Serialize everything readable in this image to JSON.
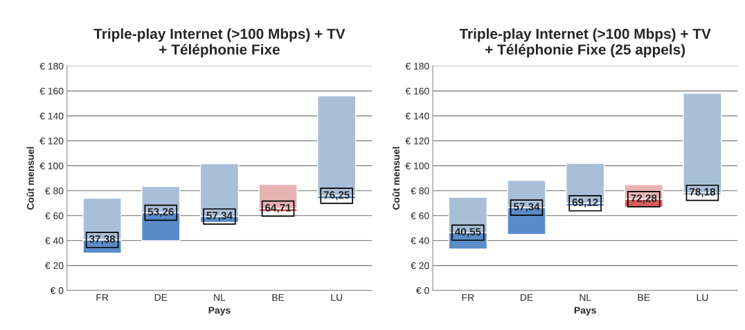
{
  "chart_data": [
    {
      "type": "bar",
      "title": "Triple-play Internet (>100 Mbps) + TV\n+ Téléphonie Fixe",
      "xlabel": "Pays",
      "ylabel": "Coût mensuel",
      "categories": [
        "FR",
        "DE",
        "NL",
        "BE",
        "LU"
      ],
      "series": [
        {
          "colors": [
            "#5b8bc9",
            "#5b8bc9",
            "#5b8bc9",
            "#d65c5c",
            "#5b8bc9"
          ],
          "base": [
            29.8,
            39.9,
            54.5,
            63.2,
            73.5
          ],
          "values": [
            10.7,
            22.4,
            4.8,
            2.4,
            2.4
          ]
        },
        {
          "colors": [
            "#a9bfd8",
            "#a9bfd8",
            "#a9bfd8",
            "#e6b3b3",
            "#a9bfd8"
          ],
          "base": [
            40.5,
            62.3,
            59.3,
            65.6,
            75.9
          ],
          "values": [
            33.4,
            21.0,
            42.3,
            19.4,
            80.1
          ]
        }
      ],
      "annotations": [
        "37,38",
        "53,26",
        "57,34",
        "64,71",
        "76,25"
      ],
      "ylim": [
        0,
        180
      ],
      "yticks": [
        {
          "value": 0,
          "label": "€ 0"
        },
        {
          "value": 20,
          "label": "€ 20"
        },
        {
          "value": 40,
          "label": "€ 40"
        },
        {
          "value": 60,
          "label": "€ 60"
        },
        {
          "value": 80,
          "label": "€ 80"
        },
        {
          "value": 100,
          "label": "€ 100"
        },
        {
          "value": 120,
          "label": "€ 120"
        },
        {
          "value": 140,
          "label": "€ 140"
        },
        {
          "value": 160,
          "label": "€ 160"
        },
        {
          "value": 180,
          "label": "€ 180"
        }
      ],
      "grid": "y"
    },
    {
      "type": "bar",
      "title": "Triple-play Internet (>100 Mbps) + TV\n+ Téléphonie Fixe (25 appels)",
      "xlabel": "Pays",
      "ylabel": "Coût mensuel",
      "categories": [
        "FR",
        "DE",
        "NL",
        "BE",
        "LU"
      ],
      "series": [
        {
          "colors": [
            "#5b8bc9",
            "#5b8bc9",
            "#5b8bc9",
            "#d65c5c",
            "#5b8bc9"
          ],
          "base": [
            33.2,
            44.9,
            67.7,
            66.8,
            76.7
          ],
          "values": [
            13.1,
            21.5,
            2.2,
            6.4,
            1.6
          ]
        },
        {
          "colors": [
            "#a9bfd8",
            "#a9bfd8",
            "#a9bfd8",
            "#e6b3b3",
            "#a9bfd8"
          ],
          "base": [
            46.3,
            66.4,
            69.9,
            73.2,
            78.3
          ],
          "values": [
            28.5,
            21.8,
            32.0,
            11.7,
            79.8
          ]
        }
      ],
      "annotations": [
        "40,55",
        "57,34",
        "69,12",
        "72,28",
        "78,18"
      ],
      "ylim": [
        0,
        180
      ],
      "yticks": [
        {
          "value": 0,
          "label": "€ 0"
        },
        {
          "value": 20,
          "label": "€ 20"
        },
        {
          "value": 40,
          "label": "€ 40"
        },
        {
          "value": 60,
          "label": "€ 60"
        },
        {
          "value": 80,
          "label": "€ 80"
        },
        {
          "value": 100,
          "label": "€ 100"
        },
        {
          "value": 120,
          "label": "€ 120"
        },
        {
          "value": 140,
          "label": "€ 140"
        },
        {
          "value": 160,
          "label": "€ 160"
        },
        {
          "value": 180,
          "label": "€ 180"
        }
      ],
      "grid": "y"
    }
  ]
}
